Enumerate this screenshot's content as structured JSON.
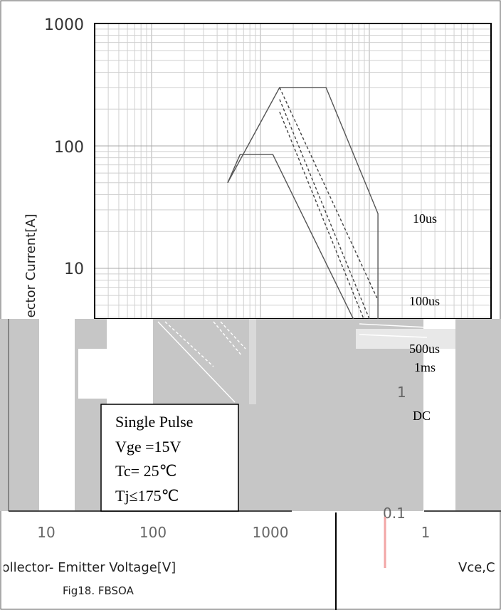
{
  "chart_data": {
    "type": "line",
    "title": "",
    "caption": "Fig18. FBSOA",
    "xlabel": "Collector- Emitter Voltage[V]",
    "ylabel": "Collector Current[A]",
    "x_scale": "log",
    "y_scale": "log",
    "ylim": [
      1,
      1000
    ],
    "y_ticks": [
      "1000",
      "100",
      "10",
      "1"
    ],
    "x_ticks": [
      "10",
      "100",
      "1000"
    ],
    "grid": true,
    "series": [
      {
        "name": "10us",
        "style": "solid",
        "x": [
          50,
          150,
          400,
          1200,
          1200
        ],
        "y": [
          50,
          300,
          300,
          28,
          1
        ]
      },
      {
        "name": "100us",
        "style": "dashed",
        "x": [
          150,
          1200
        ],
        "y": [
          300,
          5.5
        ]
      },
      {
        "name": "500us",
        "style": "dashed",
        "x": [
          150,
          1200
        ],
        "y": [
          240,
          2.6
        ]
      },
      {
        "name": "1ms",
        "style": "dashed",
        "x": [
          150,
          1200
        ],
        "y": [
          190,
          2.0
        ]
      },
      {
        "name": "DC",
        "style": "solid",
        "x": [
          50,
          65,
          130,
          1200
        ],
        "y": [
          50,
          85,
          85,
          1.5
        ]
      }
    ],
    "line_labels": [
      "10us",
      "100us",
      "500us",
      "1ms",
      "DC"
    ],
    "conditions": [
      "Single Pulse",
      "Vge =15V",
      "Tc= 25℃",
      "Tj≤175℃"
    ],
    "overlay": {
      "y_ticks": [
        "1",
        "0.1"
      ],
      "x_ticks": [
        "1"
      ],
      "xlabel_fragment": "Vce,C"
    }
  }
}
